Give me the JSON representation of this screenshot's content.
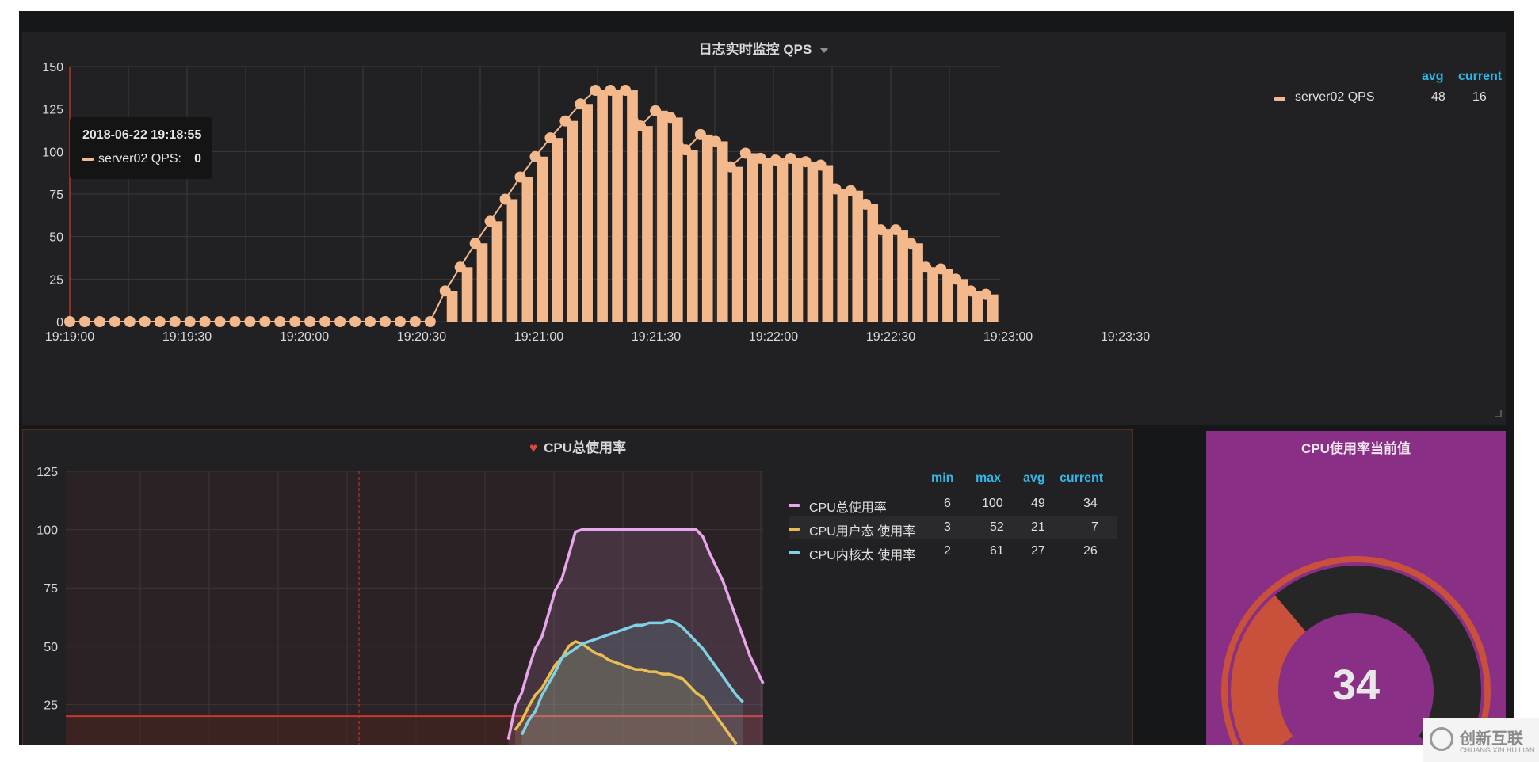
{
  "qps_panel": {
    "title": "日志实时监控 QPS",
    "tooltip": {
      "time": "2018-06-22 19:18:55",
      "series_label": "server02 QPS:",
      "value": "0"
    },
    "legend": {
      "headers": [
        "avg",
        "current"
      ],
      "rows": [
        {
          "name": "server02 QPS",
          "avg": "48",
          "current": "16",
          "color": "#f3b98d"
        }
      ]
    }
  },
  "cpu_panel": {
    "title": "CPU总使用率",
    "legend": {
      "headers": [
        "min",
        "max",
        "avg",
        "current"
      ],
      "rows": [
        {
          "name": "CPU总使用率",
          "min": "6",
          "max": "100",
          "avg": "49",
          "current": "34",
          "color": "#e8a6ec"
        },
        {
          "name": "CPU用户态 使用率",
          "min": "3",
          "max": "52",
          "avg": "21",
          "current": "7",
          "color": "#e8be54"
        },
        {
          "name": "CPU内核太 使用率",
          "min": "2",
          "max": "61",
          "avg": "27",
          "current": "26",
          "color": "#7ed2e4"
        }
      ]
    }
  },
  "gauge_panel": {
    "title": "CPU使用率当前值",
    "value": "34",
    "fraction": 0.34,
    "arc_color": "#c9503a"
  },
  "watermark": {
    "main": "创新互联",
    "sub": "CHUANG XIN HU LIAN"
  },
  "chart_data": [
    {
      "type": "bar",
      "ylim": [
        0,
        150
      ],
      "yticks": [
        "0",
        "25",
        "50",
        "75",
        "100",
        "125",
        "150"
      ],
      "xticks": [
        "19:19:00",
        "19:19:30",
        "19:20:00",
        "19:20:30",
        "19:21:00",
        "19:21:30",
        "19:22:00",
        "19:22:30",
        "19:23:00",
        "19:23:30"
      ],
      "series": [
        {
          "name": "server02 QPS",
          "color": "#f3b98d",
          "values": [
            0,
            0,
            0,
            0,
            0,
            0,
            0,
            0,
            0,
            0,
            0,
            0,
            0,
            0,
            0,
            0,
            0,
            0,
            0,
            0,
            0,
            0,
            0,
            0,
            0,
            18,
            32,
            46,
            59,
            72,
            85,
            97,
            108,
            118,
            128,
            136,
            136,
            136,
            115,
            124,
            120,
            101,
            110,
            106,
            91,
            99,
            96,
            95,
            96,
            94,
            92,
            78,
            77,
            69,
            54,
            54,
            46,
            32,
            31,
            25,
            18,
            16
          ]
        }
      ]
    },
    {
      "type": "line",
      "ylim": [
        0,
        125
      ],
      "yticks": [
        "25",
        "50",
        "75",
        "100",
        "125"
      ],
      "threshold": 20,
      "series": [
        {
          "name": "CPU总使用率",
          "color": "#e8a6ec",
          "values": [
            null,
            null,
            null,
            null,
            null,
            null,
            null,
            null,
            null,
            null,
            null,
            null,
            null,
            null,
            null,
            null,
            null,
            null,
            null,
            null,
            null,
            null,
            null,
            null,
            null,
            null,
            null,
            null,
            null,
            null,
            null,
            null,
            null,
            null,
            null,
            null,
            null,
            null,
            null,
            null,
            null,
            null,
            null,
            null,
            null,
            null,
            null,
            null,
            null,
            null,
            null,
            null,
            null,
            null,
            null,
            null,
            null,
            null,
            null,
            null,
            null,
            null,
            null,
            null,
            null,
            null,
            10,
            24,
            30,
            40,
            49,
            54,
            64,
            74,
            79,
            89,
            99,
            100,
            100,
            100,
            100,
            100,
            100,
            100,
            100,
            100,
            100,
            100,
            100,
            100,
            100,
            100,
            100,
            100,
            100,
            97,
            90,
            84,
            78,
            70,
            62,
            54,
            46,
            40,
            34
          ]
        },
        {
          "name": "CPU用户态 使用率",
          "color": "#e8be54",
          "values": [
            null,
            null,
            null,
            null,
            null,
            null,
            null,
            null,
            null,
            null,
            null,
            null,
            null,
            null,
            null,
            null,
            null,
            null,
            null,
            null,
            null,
            null,
            null,
            null,
            null,
            null,
            null,
            null,
            null,
            null,
            null,
            null,
            null,
            null,
            null,
            null,
            null,
            null,
            null,
            null,
            null,
            null,
            null,
            null,
            null,
            null,
            null,
            null,
            null,
            null,
            null,
            null,
            null,
            null,
            null,
            null,
            null,
            null,
            null,
            null,
            null,
            null,
            null,
            null,
            null,
            null,
            null,
            14,
            18,
            24,
            29,
            32,
            37,
            42,
            45,
            50,
            52,
            51,
            49,
            47,
            46,
            44,
            43,
            42,
            41,
            40,
            40,
            39,
            39,
            38,
            38,
            37,
            36,
            33,
            30,
            28,
            24,
            20,
            16,
            12,
            8,
            null,
            null,
            null,
            null
          ]
        },
        {
          "name": "CPU内核太 使用率",
          "color": "#7ed2e4",
          "values": [
            null,
            null,
            null,
            null,
            null,
            null,
            null,
            null,
            null,
            null,
            null,
            null,
            null,
            null,
            null,
            null,
            null,
            null,
            null,
            null,
            null,
            null,
            null,
            null,
            null,
            null,
            null,
            null,
            null,
            null,
            null,
            null,
            null,
            null,
            null,
            null,
            null,
            null,
            null,
            null,
            null,
            null,
            null,
            null,
            null,
            null,
            null,
            null,
            null,
            null,
            null,
            null,
            null,
            null,
            null,
            null,
            null,
            null,
            null,
            null,
            null,
            null,
            null,
            null,
            null,
            null,
            null,
            null,
            12,
            18,
            22,
            29,
            34,
            39,
            45,
            47,
            49,
            51,
            52,
            53,
            54,
            55,
            56,
            57,
            58,
            59,
            59,
            60,
            60,
            60,
            61,
            60,
            58,
            55,
            52,
            49,
            45,
            41,
            37,
            33,
            29,
            26
          ]
        }
      ]
    }
  ]
}
